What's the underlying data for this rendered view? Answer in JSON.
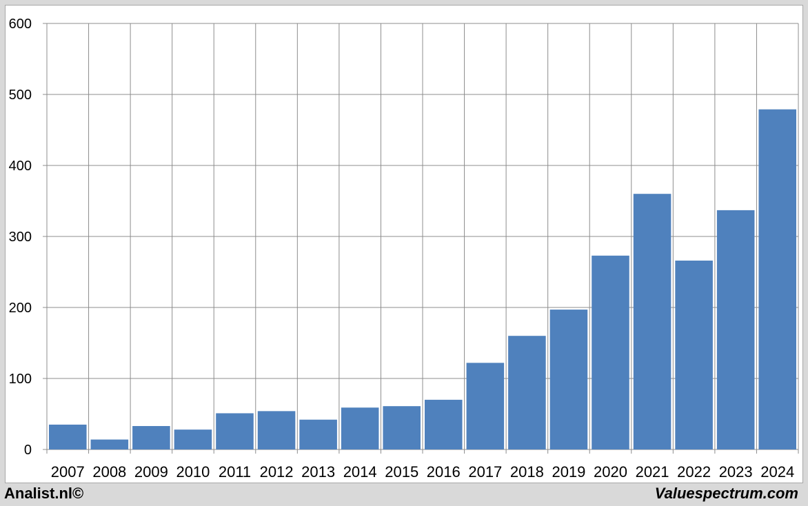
{
  "chart_data": {
    "type": "bar",
    "categories": [
      "2007",
      "2008",
      "2009",
      "2010",
      "2011",
      "2012",
      "2013",
      "2014",
      "2015",
      "2016",
      "2017",
      "2018",
      "2019",
      "2020",
      "2021",
      "2022",
      "2023",
      "2024"
    ],
    "values": [
      35,
      14,
      33,
      28,
      51,
      54,
      42,
      59,
      61,
      70,
      122,
      160,
      197,
      273,
      360,
      266,
      337,
      479
    ],
    "title": "",
    "xlabel": "",
    "ylabel": "",
    "ylim": [
      0,
      600
    ],
    "yticks": [
      "0",
      "100",
      "200",
      "300",
      "400",
      "500",
      "600"
    ],
    "grid": true,
    "bar_color": "#4f81bd",
    "grid_color": "#8c8c8c"
  },
  "footer": {
    "left": "Analist.nl©",
    "right": "Valuespectrum.com"
  }
}
